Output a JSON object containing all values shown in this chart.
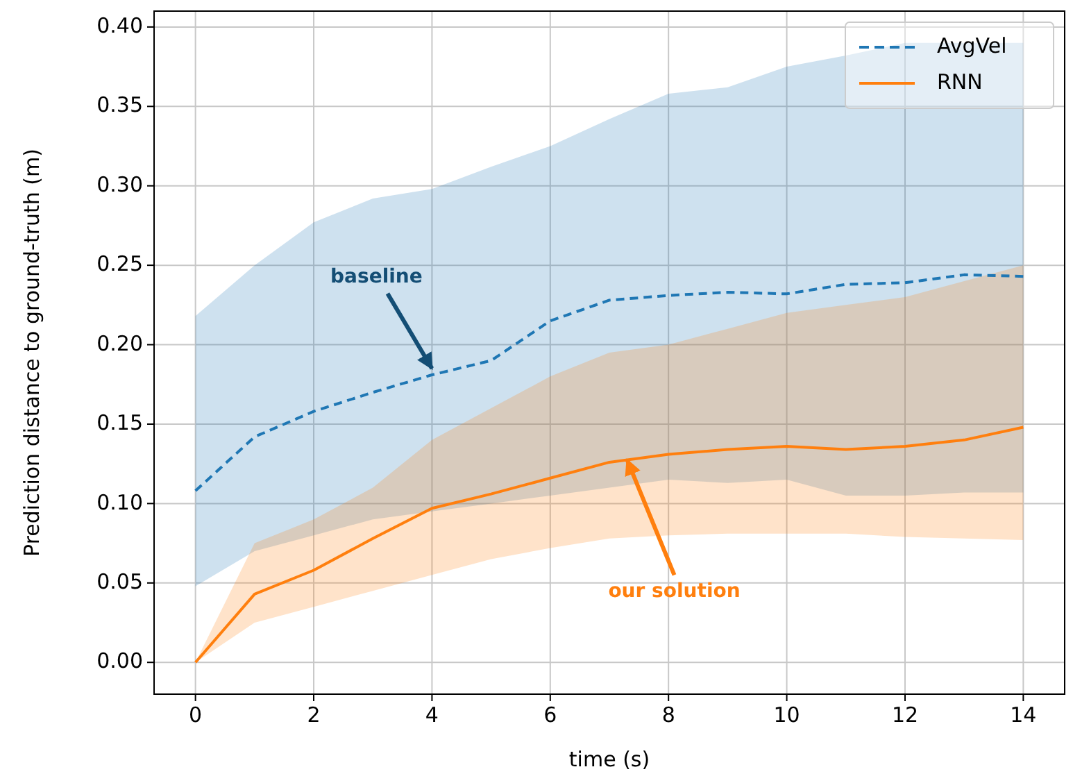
{
  "chart_data": {
    "type": "line",
    "xlabel": "time (s)",
    "ylabel": "Prediction distance to ground-truth (m)",
    "x": [
      0,
      1,
      2,
      3,
      4,
      5,
      6,
      7,
      8,
      9,
      10,
      11,
      12,
      13,
      14
    ],
    "xlim": [
      -0.7,
      14.7
    ],
    "xticks": [
      0,
      2,
      4,
      6,
      8,
      10,
      12,
      14
    ],
    "ylim": [
      -0.02,
      0.41
    ],
    "yticks": [
      {
        "value": 0,
        "label": "0.00"
      },
      {
        "value": 0.05,
        "label": "0.05"
      },
      {
        "value": 0.1,
        "label": "0.10"
      },
      {
        "value": 0.15,
        "label": "0.15"
      },
      {
        "value": 0.2,
        "label": "0.20"
      },
      {
        "value": 0.25,
        "label": "0.25"
      },
      {
        "value": 0.3,
        "label": "0.30"
      },
      {
        "value": 0.35,
        "label": "0.35"
      },
      {
        "value": 0.4,
        "label": "0.40"
      }
    ],
    "grid": true,
    "legend": "top right",
    "marker": "none",
    "series": [
      {
        "name": "AvgVel",
        "color": "#1f77b4",
        "line_style": "dashed",
        "values": [
          0.108,
          0.142,
          0.158,
          0.17,
          0.181,
          0.19,
          0.215,
          0.228,
          0.231,
          0.233,
          0.232,
          0.238,
          0.239,
          0.244,
          0.243
        ],
        "lower": [
          0.048,
          0.07,
          0.08,
          0.09,
          0.095,
          0.1,
          0.105,
          0.11,
          0.115,
          0.113,
          0.115,
          0.105,
          0.105,
          0.107,
          0.107
        ],
        "upper": [
          0.218,
          0.25,
          0.277,
          0.292,
          0.298,
          0.312,
          0.325,
          0.342,
          0.358,
          0.362,
          0.375,
          0.382,
          0.39,
          0.39,
          0.39
        ]
      },
      {
        "name": "RNN",
        "color": "#ff7f0e",
        "line_style": "solid",
        "values": [
          0,
          0.043,
          0.058,
          0.078,
          0.097,
          0.106,
          0.116,
          0.126,
          0.131,
          0.134,
          0.136,
          0.134,
          0.136,
          0.14,
          0.148
        ],
        "lower": [
          0,
          0.025,
          0.035,
          0.045,
          0.055,
          0.065,
          0.072,
          0.078,
          0.08,
          0.081,
          0.081,
          0.081,
          0.079,
          0.078,
          0.077
        ],
        "upper": [
          0,
          0.075,
          0.09,
          0.11,
          0.14,
          0.16,
          0.18,
          0.195,
          0.2,
          0.21,
          0.22,
          0.225,
          0.23,
          0.24,
          0.25
        ]
      }
    ],
    "annotations": [
      {
        "text": "baseline",
        "x": 4,
        "y": 0.185
      },
      {
        "text": "our solution",
        "x": 7.3,
        "y": 0.1275
      }
    ]
  }
}
